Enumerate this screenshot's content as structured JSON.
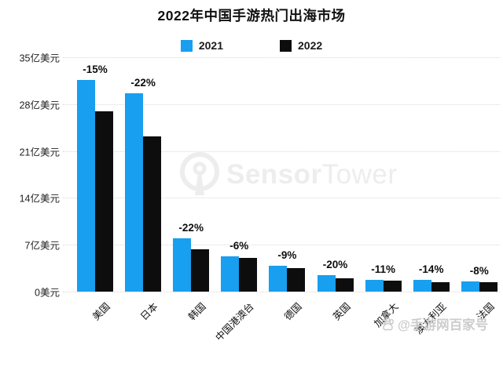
{
  "title": "2022年中国手游热门出海市场",
  "legend": {
    "items": [
      {
        "label": "2021",
        "color": "#189FEF"
      },
      {
        "label": "2022",
        "color": "#0D0D0D"
      }
    ]
  },
  "watermark": {
    "brand_bold": "Sensor",
    "brand_light": "Tower"
  },
  "credit": {
    "text": "@手游网百家号"
  },
  "chart_data": {
    "type": "bar",
    "title": "2022年中国手游热门出海市场",
    "categories": [
      "美国",
      "日本",
      "韩国",
      "中国港澳台",
      "德国",
      "英国",
      "加拿大",
      "澳大利亚",
      "法国"
    ],
    "series": [
      {
        "name": "2021",
        "color": "#189FEF",
        "values": [
          31.6,
          29.6,
          8.0,
          5.3,
          3.9,
          2.5,
          1.8,
          1.7,
          1.5
        ]
      },
      {
        "name": "2022",
        "color": "#0D0D0D",
        "values": [
          26.9,
          23.2,
          6.3,
          5.0,
          3.5,
          2.0,
          1.6,
          1.45,
          1.38
        ]
      }
    ],
    "change_labels": [
      "-15%",
      "-22%",
      "-22%",
      "-6%",
      "-9%",
      "-20%",
      "-11%",
      "-14%",
      "-8%"
    ],
    "y_ticks": [
      {
        "label": "35亿美元",
        "value": 35
      },
      {
        "label": "28亿美元",
        "value": 28
      },
      {
        "label": "21亿美元",
        "value": 21
      },
      {
        "label": "14亿美元",
        "value": 14
      },
      {
        "label": "7亿美元",
        "value": 7
      },
      {
        "label": "0美元",
        "value": 0
      }
    ],
    "ylim": [
      0,
      35
    ],
    "unit": "亿美元",
    "grid": "horizontal-dotted",
    "legend_position": "top-center",
    "bar_orientation": "vertical-grouped"
  }
}
